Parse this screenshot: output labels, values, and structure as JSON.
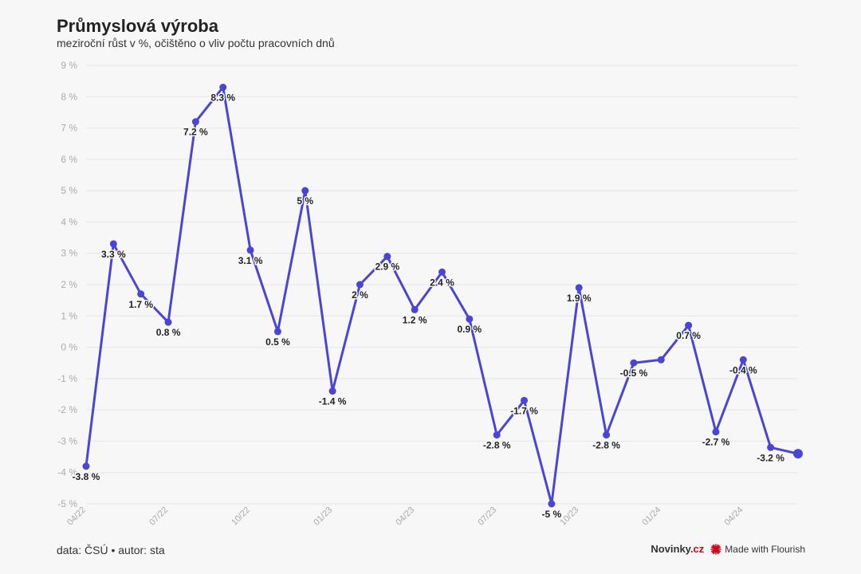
{
  "header": {
    "title": "Průmyslová výroba",
    "subtitle": "meziroční růst v %, očištěno o vliv počtu pracovních dnů"
  },
  "footer": {
    "source": "data: ČSÚ • autor: sta",
    "brand_a": "Novinky",
    "brand_b": ".cz",
    "flourish": "Made with Flourish"
  },
  "colors": {
    "series": "#4b45d6",
    "brand_accent": "#d0021b"
  },
  "chart_data": {
    "type": "line",
    "ylim": [
      -5,
      9
    ],
    "yticks": [
      9,
      8,
      7,
      6,
      5,
      4,
      3,
      2,
      1,
      0,
      -1,
      -2,
      -3,
      -4,
      -5
    ],
    "ytick_labels": [
      "9 %",
      "8 %",
      "7 %",
      "6 %",
      "5 %",
      "4 %",
      "3 %",
      "2 %",
      "1 %",
      "0 %",
      "-1 %",
      "-2 %",
      "-3 %",
      "-4 %",
      "-5 %"
    ],
    "x_tick_labels": [
      "04/22",
      "07/22",
      "10/22",
      "01/23",
      "04/23",
      "07/23",
      "10/23",
      "01/24",
      "04/24"
    ],
    "x_tick_index": [
      0,
      3,
      6,
      9,
      12,
      15,
      18,
      21,
      24
    ],
    "grid": true,
    "values": [
      -3.8,
      3.3,
      1.7,
      0.8,
      7.2,
      8.3,
      3.1,
      0.5,
      5.0,
      -1.4,
      2.0,
      2.9,
      1.2,
      2.4,
      0.9,
      -2.8,
      -1.7,
      -5.0,
      1.9,
      -2.8,
      -0.5,
      -0.4,
      0.7,
      -2.7,
      -0.4,
      -3.2,
      -3.4
    ],
    "labels": [
      "-3.8 %",
      "3.3 %",
      "1.7 %",
      "0.8 %",
      "7.2 %",
      "8.3 %",
      "3.1 %",
      "0.5 %",
      "5 %",
      "-1.4 %",
      "2 %",
      "2.9 %",
      "1.2 %",
      "2.4 %",
      "0.9 %",
      "-2.8 %",
      "-1.7 %",
      "-5 %",
      "1.9 %",
      "-2.8 %",
      "-0.5 %",
      "",
      "0.7 %",
      "-2.7 %",
      "-0.4 %",
      "-3.2 %",
      ""
    ]
  }
}
